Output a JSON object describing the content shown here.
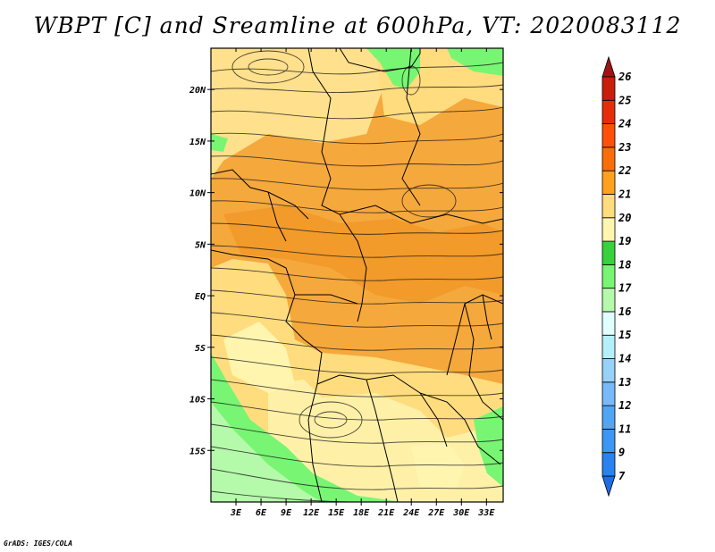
{
  "title": "WBPT [C] and Sreamline at 600hPa, VT: 2020083112",
  "credit": "GrADS: IGES/COLA",
  "map": {
    "lat_range": [
      -20,
      24
    ],
    "lon_range": [
      0,
      35
    ],
    "lat_ticks": [
      {
        "value": 20,
        "label": "20N"
      },
      {
        "value": 15,
        "label": "15N"
      },
      {
        "value": 10,
        "label": "10N"
      },
      {
        "value": 5,
        "label": "5N"
      },
      {
        "value": 0,
        "label": "EQ"
      },
      {
        "value": -5,
        "label": "5S"
      },
      {
        "value": -10,
        "label": "10S"
      },
      {
        "value": -15,
        "label": "15S"
      }
    ],
    "lon_ticks": [
      {
        "value": 3,
        "label": "3E"
      },
      {
        "value": 6,
        "label": "6E"
      },
      {
        "value": 9,
        "label": "9E"
      },
      {
        "value": 12,
        "label": "12E"
      },
      {
        "value": 15,
        "label": "15E"
      },
      {
        "value": 18,
        "label": "18E"
      },
      {
        "value": 21,
        "label": "21E"
      },
      {
        "value": 24,
        "label": "24E"
      },
      {
        "value": 27,
        "label": "27E"
      },
      {
        "value": 30,
        "label": "30E"
      },
      {
        "value": 33,
        "label": "33E"
      }
    ],
    "background_value": 21
  },
  "colorbar": {
    "levels": [
      {
        "label": "7",
        "color": "#1e6ee6"
      },
      {
        "label": "9",
        "color": "#2882f0"
      },
      {
        "label": "11",
        "color": "#3c96f5"
      },
      {
        "label": "12",
        "color": "#50a5f5"
      },
      {
        "label": "13",
        "color": "#78b9fa"
      },
      {
        "label": "14",
        "color": "#96d2fa"
      },
      {
        "label": "15",
        "color": "#b4f0fa"
      },
      {
        "label": "16",
        "color": "#e1ffff"
      },
      {
        "label": "17",
        "color": "#b4faaa"
      },
      {
        "label": "18",
        "color": "#78f573"
      },
      {
        "label": "19",
        "color": "#37d23c"
      },
      {
        "label": "20",
        "color": "#fff5af"
      },
      {
        "label": "21",
        "color": "#ffdc7d"
      },
      {
        "label": "22",
        "color": "#ffa01e"
      },
      {
        "label": "23",
        "color": "#fa6e0a"
      },
      {
        "label": "24",
        "color": "#ff500a"
      },
      {
        "label": "25",
        "color": "#e62d0a"
      },
      {
        "label": "26",
        "color": "#c81e0a"
      },
      {
        "label": "",
        "color": "#a01414"
      }
    ]
  },
  "regions": [
    {
      "name": "green-south-west",
      "value": 17
    },
    {
      "name": "green-south-east",
      "value": 17
    },
    {
      "name": "green-north",
      "value": 17
    },
    {
      "name": "cream-north",
      "value": 19
    },
    {
      "name": "cream-coast",
      "value": 19
    },
    {
      "name": "cream-south",
      "value": 19
    },
    {
      "name": "orange-band",
      "value": 21
    }
  ]
}
